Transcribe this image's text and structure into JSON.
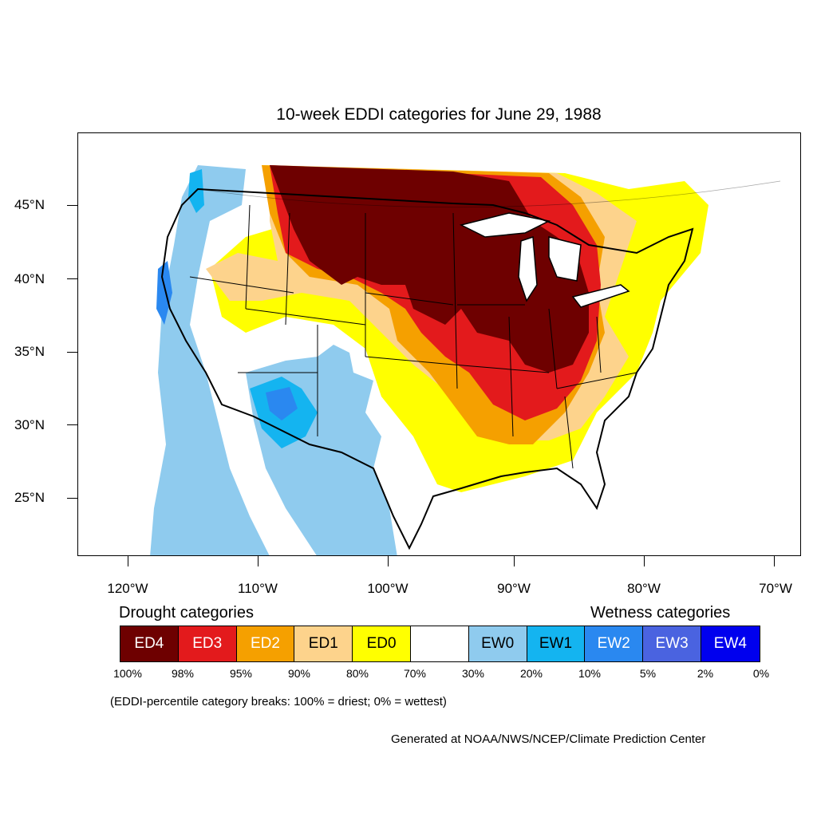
{
  "title": "10-week EDDI categories for June 29, 1988",
  "axes": {
    "lat": [
      {
        "label": "45°N",
        "value": 45
      },
      {
        "label": "40°N",
        "value": 40
      },
      {
        "label": "35°N",
        "value": 35
      },
      {
        "label": "30°N",
        "value": 30
      },
      {
        "label": "25°N",
        "value": 25
      }
    ],
    "lon": [
      {
        "label": "120°W",
        "value": -120
      },
      {
        "label": "110°W",
        "value": -110
      },
      {
        "label": "100°W",
        "value": -100
      },
      {
        "label": "90°W",
        "value": -90
      },
      {
        "label": "80°W",
        "value": -80
      },
      {
        "label": "70°W",
        "value": -70
      }
    ]
  },
  "legend": {
    "drought_heading": "Drought categories",
    "wetness_heading": "Wetness categories",
    "categories": [
      {
        "label": "ED4",
        "color": "#6e0000",
        "text_color": "#ffffff"
      },
      {
        "label": "ED3",
        "color": "#e31a1c",
        "text_color": "#ffffff"
      },
      {
        "label": "ED2",
        "color": "#f5a000",
        "text_color": "#ffffff"
      },
      {
        "label": "ED1",
        "color": "#fdd38c",
        "text_color": "#000000"
      },
      {
        "label": "ED0",
        "color": "#ffff00",
        "text_color": "#000000"
      },
      {
        "label": "",
        "color": "#ffffff",
        "text_color": "#000000"
      },
      {
        "label": "EW0",
        "color": "#8fcbee",
        "text_color": "#000000"
      },
      {
        "label": "EW1",
        "color": "#14b4f0",
        "text_color": "#000000"
      },
      {
        "label": "EW2",
        "color": "#2a88f0",
        "text_color": "#ffffff"
      },
      {
        "label": "EW3",
        "color": "#4a63e0",
        "text_color": "#ffffff"
      },
      {
        "label": "EW4",
        "color": "#0000ee",
        "text_color": "#ffffff"
      }
    ],
    "breaks": [
      "100%",
      "98%",
      "95%",
      "90%",
      "80%",
      "70%",
      "30%",
      "20%",
      "10%",
      "5%",
      "2%",
      "0%"
    ],
    "note": "(EDDI-percentile category breaks: 100% = driest; 0% = wettest)"
  },
  "credit": "Generated at NOAA/NWS/NCEP/Climate Prediction Center"
}
